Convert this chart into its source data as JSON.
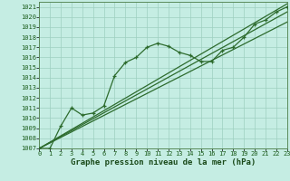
{
  "title": "Graphe pression niveau de la mer (hPa)",
  "bg_color": "#c5ede3",
  "grid_color": "#9ecfc0",
  "line_color": "#2d6b2d",
  "xlim": [
    0,
    23
  ],
  "ylim": [
    1007,
    1021.5
  ],
  "yticks": [
    1007,
    1008,
    1009,
    1010,
    1011,
    1012,
    1013,
    1014,
    1015,
    1016,
    1017,
    1018,
    1019,
    1020,
    1021
  ],
  "xticks": [
    0,
    1,
    2,
    3,
    4,
    5,
    6,
    7,
    8,
    9,
    10,
    11,
    12,
    13,
    14,
    15,
    16,
    17,
    18,
    19,
    20,
    21,
    22,
    23
  ],
  "series_marked": {
    "x": [
      0,
      1,
      2,
      3,
      4,
      5,
      6,
      7,
      8,
      9,
      10,
      11,
      12,
      13,
      14,
      15,
      16,
      17,
      18,
      19,
      20,
      21,
      22,
      23
    ],
    "y": [
      1007.0,
      1007.0,
      1009.2,
      1011.0,
      1010.3,
      1010.5,
      1011.2,
      1014.2,
      1015.5,
      1016.0,
      1017.0,
      1017.4,
      1017.1,
      1016.5,
      1016.2,
      1015.6,
      1015.6,
      1016.7,
      1017.0,
      1018.0,
      1019.3,
      1019.7,
      1020.5,
      1021.0
    ]
  },
  "series_lines": [
    {
      "x": [
        0,
        23
      ],
      "y": [
        1007.0,
        1019.5
      ]
    },
    {
      "x": [
        0,
        23
      ],
      "y": [
        1007.0,
        1020.5
      ]
    },
    {
      "x": [
        0,
        23
      ],
      "y": [
        1007.0,
        1021.3
      ]
    }
  ],
  "tick_fontsize": 5,
  "label_fontsize": 6.5
}
